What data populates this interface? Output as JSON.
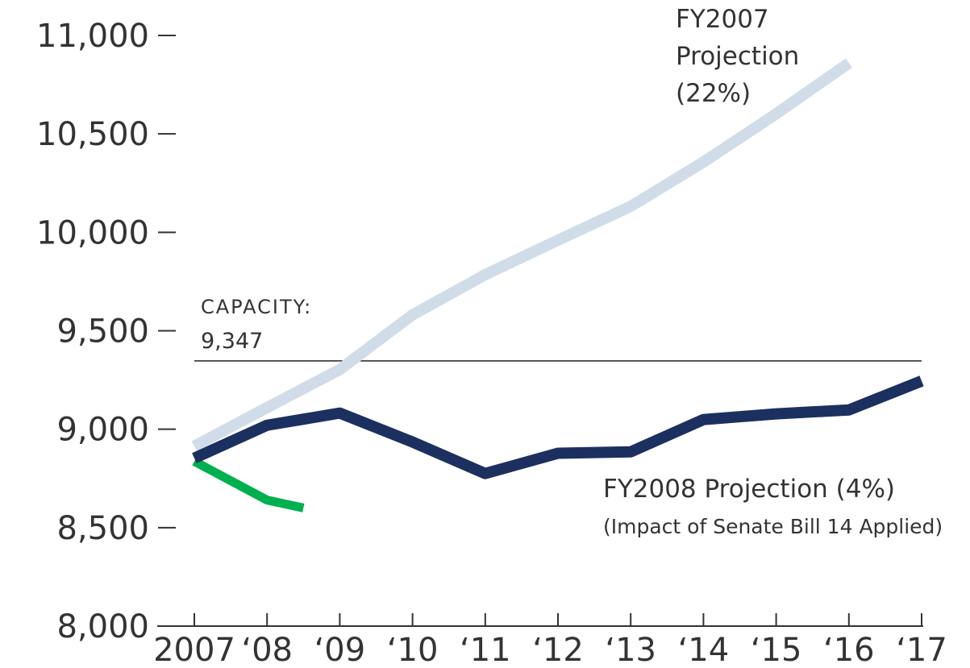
{
  "chart_data": {
    "type": "line",
    "xlim": [
      2007,
      2017
    ],
    "xticks": [
      {
        "value": 2007,
        "label": "2007"
      },
      {
        "value": 2008,
        "label": "‘08"
      },
      {
        "value": 2009,
        "label": "‘09"
      },
      {
        "value": 2010,
        "label": "‘10"
      },
      {
        "value": 2011,
        "label": "‘11"
      },
      {
        "value": 2012,
        "label": "‘12"
      },
      {
        "value": 2013,
        "label": "‘13"
      },
      {
        "value": 2014,
        "label": "‘14"
      },
      {
        "value": 2015,
        "label": "‘15"
      },
      {
        "value": 2016,
        "label": "‘16"
      },
      {
        "value": 2017,
        "label": "‘17"
      }
    ],
    "ylim": [
      8000,
      11000
    ],
    "yticks": [
      {
        "value": 8000,
        "label": "8,000"
      },
      {
        "value": 8500,
        "label": "8,500"
      },
      {
        "value": 9000,
        "label": "9,000"
      },
      {
        "value": 9500,
        "label": "9,500"
      },
      {
        "value": 10000,
        "label": "10,000"
      },
      {
        "value": 10500,
        "label": "10,500"
      },
      {
        "value": 11000,
        "label": "11,000"
      }
    ],
    "reference_line": {
      "value": 9347,
      "label": "CAPACITY:",
      "value_label": "9,347"
    },
    "series": [
      {
        "name": "FY2007 Projection (22%)",
        "color": "#d0dce8",
        "x": [
          2007,
          2008,
          2009,
          2010,
          2011,
          2012,
          2013,
          2014,
          2015,
          2016
        ],
        "values": [
          8914,
          9110,
          9303,
          9581,
          9785,
          9960,
          10132,
          10357,
          10602,
          10860
        ]
      },
      {
        "name": "FY2008 Projection (4%)",
        "note": "(Impact of Senate Bill 14 Applied)",
        "color": "#1c3060",
        "x": [
          2007,
          2008,
          2009,
          2010,
          2011,
          2012,
          2013,
          2014,
          2015,
          2016,
          2017
        ],
        "values": [
          8853,
          9020,
          9082,
          8935,
          8775,
          8878,
          8885,
          9049,
          9078,
          9098,
          9245
        ]
      },
      {
        "color": "#00b04f",
        "x": [
          2007,
          2008,
          2008.5
        ],
        "values": [
          8837,
          8640,
          8600
        ]
      }
    ]
  }
}
